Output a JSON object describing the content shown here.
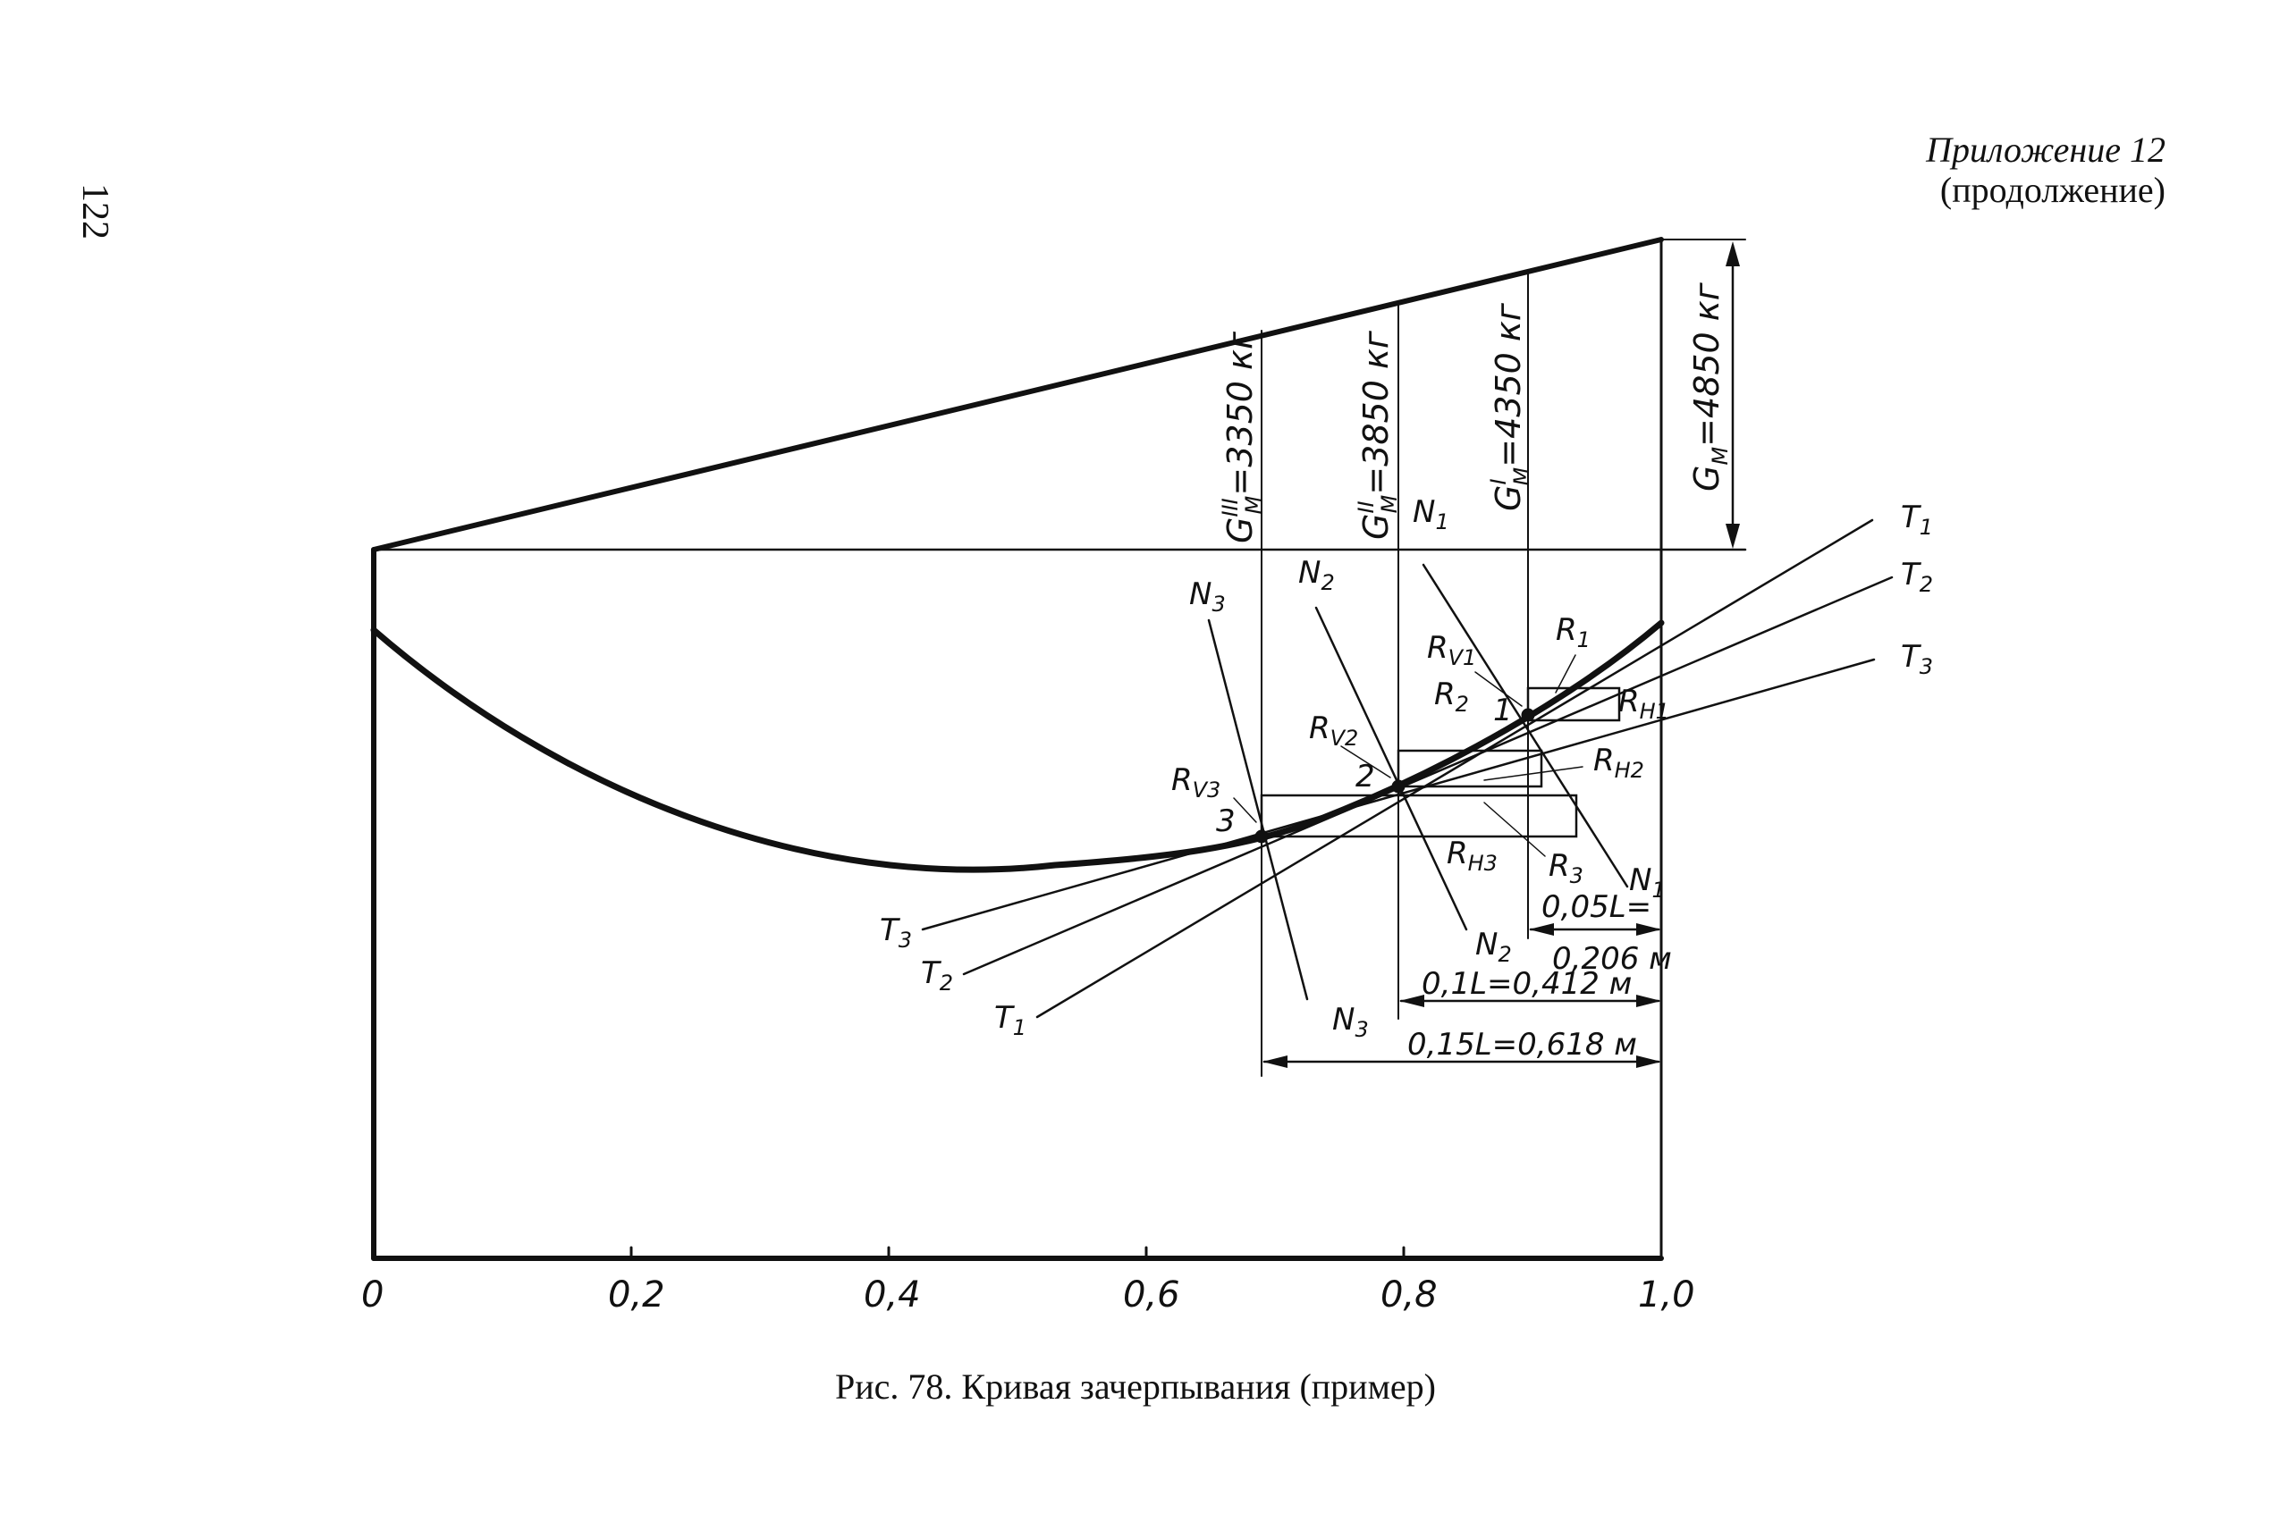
{
  "page": {
    "number": "122",
    "appendix_line1": "Приложение 12",
    "appendix_line2": "(продолжение)",
    "caption": "Рис. 78. Кривая зачерпывания (пример)"
  },
  "axis": {
    "x_ticks": [
      "0",
      "0,2",
      "0,4",
      "0,6",
      "0,8",
      "1,0"
    ],
    "x_values": [
      0,
      0.2,
      0.4,
      0.6,
      0.8,
      1.0
    ]
  },
  "weights": {
    "gm_total": "G",
    "gm_total_sub": "M",
    "gm_total_val": "=4850 кг",
    "gm1": "G",
    "gm1_sup": "I",
    "gm1_sub": "M",
    "gm1_val": "=4350 кг",
    "gm2": "G",
    "gm2_sup": "II",
    "gm2_sub": "M",
    "gm2_val": "=3850 кг",
    "gm3": "G",
    "gm3_sup": "III",
    "gm3_sub": "M",
    "gm3_val": "=3350 кг"
  },
  "dimensions": {
    "d1_a": "0,05L=",
    "d1_b": "0,206 м",
    "d2": "0,1L=0,412 м",
    "d3": "0,15L=0,618 м"
  },
  "labels": {
    "T": "T",
    "N": "N",
    "R": "R",
    "s1": "1",
    "s2": "2",
    "s3": "3",
    "RV": "R",
    "RH": "R",
    "V1": "V1",
    "V2": "V2",
    "V3": "V3",
    "H1": "H1",
    "H2": "H2",
    "H3": "H3",
    "p1": "1",
    "p2": "2",
    "p3": "3"
  }
}
